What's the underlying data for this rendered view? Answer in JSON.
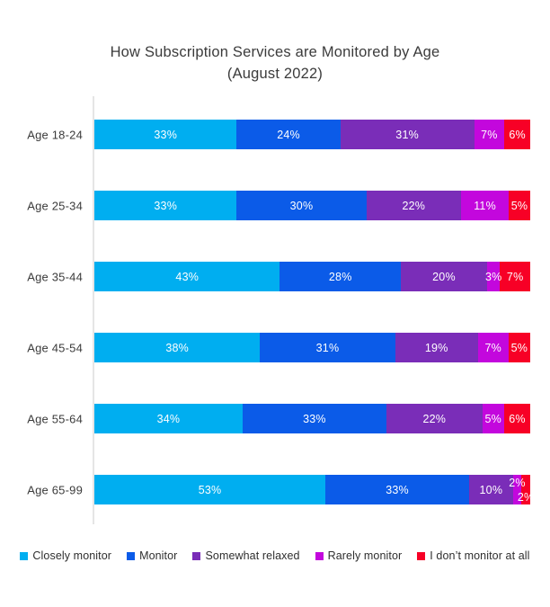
{
  "title": {
    "line1": "How Subscription Services are Monitored by Age",
    "line2": "(August 2022)"
  },
  "chart_data": {
    "type": "bar",
    "orientation": "horizontal",
    "stacked": true,
    "title": "How Subscription Services are Monitored by Age (August 2022)",
    "categories": [
      "Age 18-24",
      "Age 25-34",
      "Age 35-44",
      "Age 45-54",
      "Age 55-64",
      "Age 65-99"
    ],
    "series": [
      {
        "name": "Closely monitor",
        "color": "#00aef0",
        "values": [
          33,
          33,
          43,
          38,
          34,
          53
        ]
      },
      {
        "name": "Monitor",
        "color": "#0b5be8",
        "values": [
          24,
          30,
          28,
          31,
          33,
          33
        ]
      },
      {
        "name": "Somewhat relaxed",
        "color": "#7a2db8",
        "values": [
          31,
          22,
          20,
          19,
          22,
          10
        ]
      },
      {
        "name": "Rarely monitor",
        "color": "#c307dd",
        "values": [
          7,
          11,
          3,
          7,
          5,
          2
        ]
      },
      {
        "name": "I don’t monitor at all",
        "color": "#f70026",
        "values": [
          6,
          5,
          7,
          5,
          6,
          2
        ]
      }
    ],
    "value_suffix": "%",
    "data_labels": true,
    "data_label_color": "#ffffff",
    "legend_position": "bottom",
    "grid": false,
    "axis_line_color": "#e5e5e5"
  }
}
